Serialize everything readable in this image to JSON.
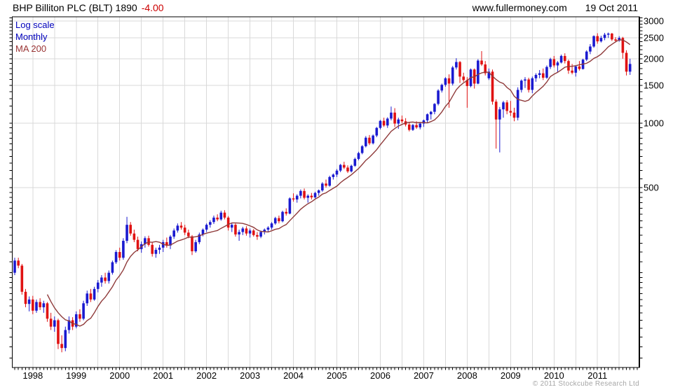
{
  "header": {
    "title": "BHP Billiton PLC (BLT) 1890",
    "change": "-4.00",
    "website": "www.fullermoney.com",
    "date": "19 Oct 2011"
  },
  "legend": {
    "items": [
      {
        "label": "Log scale",
        "color": "#0000bb"
      },
      {
        "label": "Monthly",
        "color": "#0000bb"
      },
      {
        "label": "MA 200",
        "color": "#993333"
      }
    ]
  },
  "footer": {
    "copyright": "© 2011 Stockcube Research Ltd"
  },
  "chart_data": {
    "type": "candlestick",
    "scale": "log",
    "period": "monthly",
    "title": "BHP Billiton PLC (BLT)",
    "last_price": 1890,
    "last_change": -4.0,
    "overlay": "MA 200",
    "ma_window": 10,
    "start_month": "1997-08",
    "end_month": "2011-10",
    "y_axis": {
      "side": "right",
      "ticks": [
        3000,
        2500,
        2000,
        1500,
        1000,
        500
      ],
      "range": [
        72,
        3140
      ]
    },
    "x_axis": {
      "year_labels": [
        1998,
        1999,
        2000,
        2001,
        2002,
        2003,
        2004,
        2005,
        2006,
        2007,
        2008,
        2009,
        2010,
        2011
      ]
    },
    "colors": {
      "up": "#1a1ad0",
      "down": "#e01212",
      "ma": "#8f3a3a",
      "grid": "#d9d9d9",
      "axis": "#000000"
    },
    "ohlc": [
      [
        200,
        235,
        195,
        228
      ],
      [
        228,
        235,
        210,
        216
      ],
      [
        216,
        220,
        158,
        163
      ],
      [
        163,
        168,
        138,
        143
      ],
      [
        143,
        155,
        132,
        150
      ],
      [
        150,
        156,
        128,
        133
      ],
      [
        133,
        150,
        130,
        146
      ],
      [
        146,
        152,
        134,
        138
      ],
      [
        138,
        148,
        130,
        144
      ],
      [
        144,
        146,
        118,
        122
      ],
      [
        122,
        130,
        108,
        112
      ],
      [
        112,
        125,
        106,
        120
      ],
      [
        120,
        122,
        88,
        93
      ],
      [
        93,
        102,
        85,
        89
      ],
      [
        89,
        112,
        86,
        108
      ],
      [
        108,
        125,
        104,
        120
      ],
      [
        120,
        124,
        108,
        112
      ],
      [
        112,
        132,
        110,
        128
      ],
      [
        128,
        135,
        118,
        122
      ],
      [
        122,
        148,
        120,
        144
      ],
      [
        144,
        165,
        140,
        160
      ],
      [
        160,
        168,
        146,
        150
      ],
      [
        150,
        172,
        148,
        168
      ],
      [
        168,
        185,
        162,
        180
      ],
      [
        180,
        195,
        172,
        190
      ],
      [
        190,
        200,
        178,
        183
      ],
      [
        183,
        205,
        178,
        200
      ],
      [
        200,
        228,
        196,
        224
      ],
      [
        224,
        255,
        220,
        250
      ],
      [
        250,
        262,
        228,
        235
      ],
      [
        235,
        290,
        230,
        282
      ],
      [
        282,
        365,
        275,
        335
      ],
      [
        335,
        345,
        298,
        305
      ],
      [
        305,
        318,
        278,
        285
      ],
      [
        285,
        295,
        252,
        258
      ],
      [
        258,
        280,
        248,
        272
      ],
      [
        272,
        296,
        262,
        290
      ],
      [
        290,
        298,
        265,
        270
      ],
      [
        270,
        278,
        238,
        245
      ],
      [
        245,
        262,
        235,
        256
      ],
      [
        256,
        270,
        245,
        262
      ],
      [
        262,
        285,
        250,
        278
      ],
      [
        278,
        292,
        262,
        268
      ],
      [
        268,
        300,
        258,
        295
      ],
      [
        295,
        322,
        288,
        315
      ],
      [
        315,
        340,
        308,
        332
      ],
      [
        332,
        345,
        318,
        325
      ],
      [
        325,
        335,
        300,
        308
      ],
      [
        308,
        318,
        290,
        296
      ],
      [
        296,
        300,
        242,
        252
      ],
      [
        252,
        285,
        248,
        278
      ],
      [
        278,
        308,
        272,
        302
      ],
      [
        302,
        322,
        296,
        318
      ],
      [
        318,
        340,
        310,
        335
      ],
      [
        335,
        352,
        325,
        345
      ],
      [
        345,
        370,
        338,
        362
      ],
      [
        362,
        375,
        348,
        355
      ],
      [
        355,
        390,
        350,
        382
      ],
      [
        382,
        392,
        355,
        362
      ],
      [
        362,
        368,
        315,
        325
      ],
      [
        325,
        342,
        310,
        335
      ],
      [
        335,
        340,
        295,
        302
      ],
      [
        302,
        318,
        282,
        310
      ],
      [
        310,
        328,
        300,
        322
      ],
      [
        322,
        330,
        298,
        305
      ],
      [
        305,
        322,
        292,
        315
      ],
      [
        315,
        320,
        295,
        300
      ],
      [
        300,
        310,
        285,
        295
      ],
      [
        295,
        315,
        290,
        310
      ],
      [
        310,
        322,
        302,
        318
      ],
      [
        318,
        330,
        310,
        325
      ],
      [
        325,
        345,
        318,
        340
      ],
      [
        340,
        365,
        335,
        360
      ],
      [
        360,
        370,
        340,
        348
      ],
      [
        348,
        390,
        344,
        385
      ],
      [
        385,
        400,
        370,
        378
      ],
      [
        378,
        450,
        375,
        445
      ],
      [
        445,
        470,
        430,
        440
      ],
      [
        440,
        465,
        425,
        458
      ],
      [
        458,
        490,
        445,
        482
      ],
      [
        482,
        495,
        440,
        448
      ],
      [
        448,
        465,
        425,
        458
      ],
      [
        458,
        472,
        440,
        450
      ],
      [
        450,
        478,
        445,
        472
      ],
      [
        472,
        490,
        458,
        485
      ],
      [
        485,
        530,
        478,
        522
      ],
      [
        522,
        545,
        500,
        510
      ],
      [
        510,
        568,
        505,
        560
      ],
      [
        560,
        582,
        545,
        575
      ],
      [
        575,
        610,
        560,
        600
      ],
      [
        600,
        645,
        590,
        638
      ],
      [
        638,
        660,
        610,
        620
      ],
      [
        620,
        635,
        585,
        595
      ],
      [
        595,
        640,
        588,
        632
      ],
      [
        632,
        690,
        625,
        680
      ],
      [
        680,
        735,
        670,
        725
      ],
      [
        725,
        790,
        715,
        780
      ],
      [
        780,
        870,
        770,
        855
      ],
      [
        855,
        880,
        790,
        805
      ],
      [
        805,
        885,
        795,
        875
      ],
      [
        875,
        960,
        860,
        950
      ],
      [
        950,
        1035,
        935,
        1025
      ],
      [
        1025,
        1060,
        960,
        975
      ],
      [
        975,
        1065,
        950,
        1050
      ],
      [
        1050,
        1195,
        1030,
        1120
      ],
      [
        1120,
        1175,
        960,
        995
      ],
      [
        995,
        1060,
        940,
        1040
      ],
      [
        1040,
        1085,
        1000,
        1020
      ],
      [
        1020,
        1055,
        965,
        985
      ],
      [
        985,
        1010,
        915,
        930
      ],
      [
        930,
        990,
        920,
        980
      ],
      [
        980,
        1020,
        940,
        955
      ],
      [
        955,
        1005,
        935,
        995
      ],
      [
        995,
        1040,
        960,
        1030
      ],
      [
        1030,
        1110,
        1000,
        1100
      ],
      [
        1100,
        1140,
        1040,
        1130
      ],
      [
        1130,
        1240,
        1100,
        1230
      ],
      [
        1230,
        1440,
        1210,
        1420
      ],
      [
        1420,
        1530,
        1390,
        1510
      ],
      [
        1510,
        1640,
        1480,
        1620
      ],
      [
        1620,
        1690,
        1180,
        1530
      ],
      [
        1530,
        1850,
        1500,
        1820
      ],
      [
        1820,
        2010,
        1780,
        1930
      ],
      [
        1930,
        1950,
        1540,
        1650
      ],
      [
        1650,
        1720,
        1560,
        1590
      ],
      [
        1590,
        1640,
        1180,
        1490
      ],
      [
        1490,
        1800,
        1470,
        1780
      ],
      [
        1780,
        1800,
        1450,
        1530
      ],
      [
        1530,
        1990,
        1520,
        1960
      ],
      [
        1960,
        2170,
        1850,
        1880
      ],
      [
        1880,
        1950,
        1670,
        1710
      ],
      [
        1620,
        1800,
        1590,
        1740
      ],
      [
        1740,
        1780,
        1220,
        1260
      ],
      [
        1260,
        1290,
        760,
        1040
      ],
      [
        1040,
        1190,
        730,
        1160
      ],
      [
        1160,
        1270,
        1060,
        1250
      ],
      [
        1250,
        1280,
        1100,
        1140
      ],
      [
        1140,
        1270,
        1080,
        1120
      ],
      [
        1120,
        1180,
        1020,
        1060
      ],
      [
        1060,
        1470,
        1030,
        1430
      ],
      [
        1430,
        1600,
        1390,
        1580
      ],
      [
        1580,
        1640,
        1460,
        1600
      ],
      [
        1600,
        1630,
        1390,
        1430
      ],
      [
        1430,
        1650,
        1380,
        1620
      ],
      [
        1620,
        1710,
        1560,
        1680
      ],
      [
        1680,
        1770,
        1620,
        1710
      ],
      [
        1710,
        1800,
        1590,
        1630
      ],
      [
        1630,
        1860,
        1610,
        1830
      ],
      [
        1830,
        2020,
        1790,
        1990
      ],
      [
        1990,
        2060,
        1820,
        1860
      ],
      [
        1860,
        1950,
        1730,
        1920
      ],
      [
        1920,
        2090,
        1900,
        2060
      ],
      [
        2060,
        2120,
        1900,
        1950
      ],
      [
        1950,
        1980,
        1700,
        1760
      ],
      [
        1760,
        1890,
        1690,
        1720
      ],
      [
        1720,
        1860,
        1650,
        1840
      ],
      [
        1840,
        1950,
        1760,
        1790
      ],
      [
        1790,
        2000,
        1780,
        1980
      ],
      [
        1980,
        2190,
        1950,
        2160
      ],
      [
        2160,
        2340,
        2100,
        2280
      ],
      [
        2280,
        2570,
        2250,
        2550
      ],
      [
        2550,
        2630,
        2350,
        2410
      ],
      [
        2410,
        2560,
        2380,
        2500
      ],
      [
        2500,
        2640,
        2440,
        2590
      ],
      [
        2590,
        2650,
        2500,
        2620
      ],
      [
        2620,
        2640,
        2420,
        2460
      ],
      [
        2460,
        2520,
        2380,
        2430
      ],
      [
        2430,
        2550,
        2400,
        2500
      ],
      [
        2500,
        2530,
        2000,
        2130
      ],
      [
        2130,
        2190,
        1670,
        1740
      ],
      [
        1740,
        2000,
        1680,
        1890
      ]
    ]
  }
}
